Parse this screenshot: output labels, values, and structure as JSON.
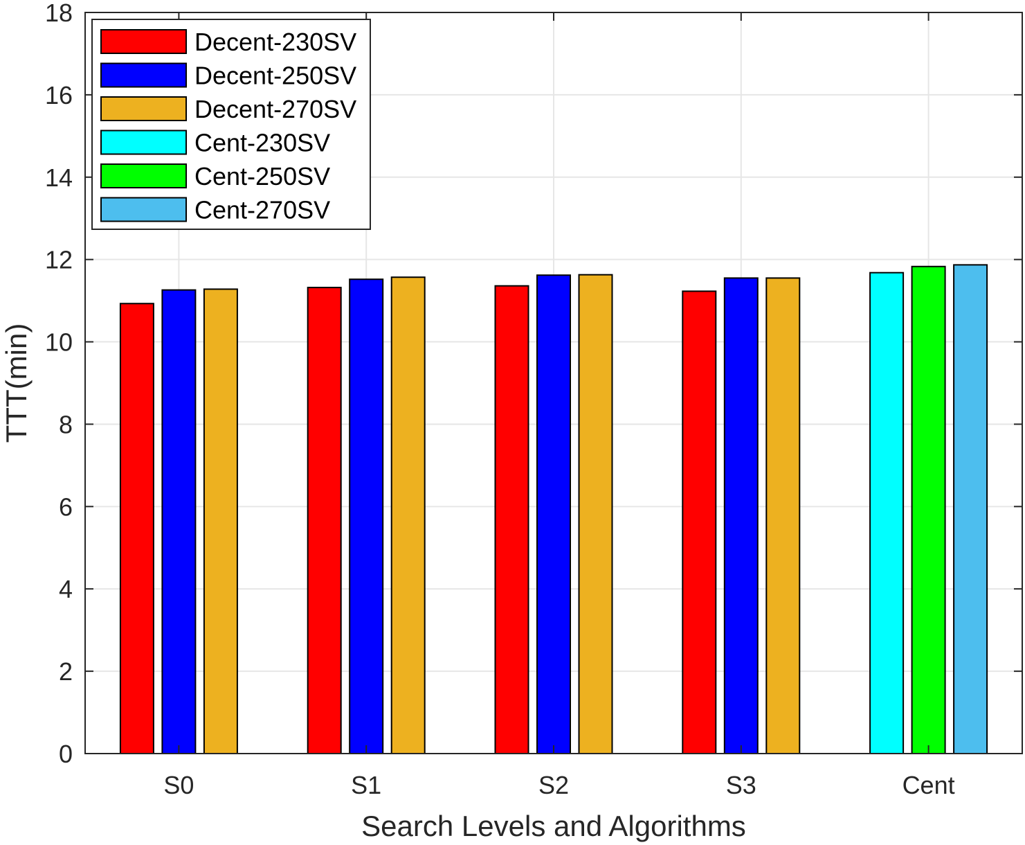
{
  "chart_data": {
    "type": "bar",
    "xlabel": "Search Levels and Algorithms",
    "ylabel": "TTT(min)",
    "categories": [
      "S0",
      "S1",
      "S2",
      "S3",
      "Cent"
    ],
    "ylim": [
      0,
      18
    ],
    "yticks": [
      0,
      2,
      4,
      6,
      8,
      10,
      12,
      14,
      16,
      18
    ],
    "grid": true,
    "legend_position": "top-left",
    "series": [
      {
        "name": "Decent-230SV",
        "color": "#ff0000",
        "values": [
          10.93,
          11.32,
          11.36,
          11.23,
          null
        ]
      },
      {
        "name": "Decent-250SV",
        "color": "#0000ff",
        "values": [
          11.26,
          11.52,
          11.62,
          11.55,
          null
        ]
      },
      {
        "name": "Decent-270SV",
        "color": "#edb120",
        "values": [
          11.28,
          11.57,
          11.63,
          11.55,
          null
        ]
      },
      {
        "name": "Cent-230SV",
        "color": "#00ffff",
        "values": [
          null,
          null,
          null,
          null,
          11.68
        ]
      },
      {
        "name": "Cent-250SV",
        "color": "#00ff00",
        "values": [
          null,
          null,
          null,
          null,
          11.83
        ]
      },
      {
        "name": "Cent-270SV",
        "color": "#4dbeee",
        "values": [
          null,
          null,
          null,
          null,
          11.87
        ]
      }
    ]
  }
}
